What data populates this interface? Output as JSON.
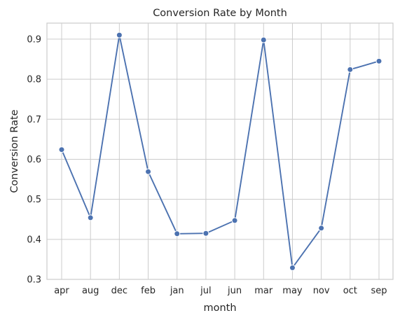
{
  "chart_data": {
    "type": "line",
    "title": "Conversion Rate by Month",
    "xlabel": "month",
    "ylabel": "Conversion Rate",
    "categories": [
      "apr",
      "aug",
      "dec",
      "feb",
      "jan",
      "jul",
      "jun",
      "mar",
      "may",
      "nov",
      "oct",
      "sep"
    ],
    "series": [
      {
        "values": [
          0.624,
          0.454,
          0.91,
          0.569,
          0.414,
          0.415,
          0.447,
          0.898,
          0.329,
          0.428,
          0.824,
          0.845
        ],
        "color": "#4c72b0",
        "marker": "circle"
      }
    ],
    "ylim": [
      0.3,
      0.94
    ],
    "yticks": [
      "0.3",
      "0.4",
      "0.5",
      "0.6",
      "0.7",
      "0.8",
      "0.9"
    ],
    "grid": true,
    "legend": "none"
  }
}
